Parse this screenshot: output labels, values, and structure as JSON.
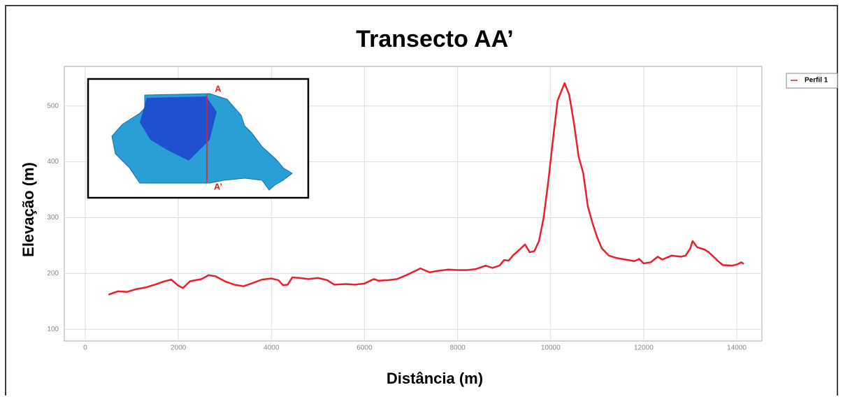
{
  "chart_data": {
    "type": "line",
    "title": "Transecto AA’",
    "x_label": "Distância (m)",
    "y_label": "Elevação (m)",
    "x": [
      500,
      700,
      900,
      1100,
      1300,
      1500,
      1700,
      1850,
      2000,
      2100,
      2250,
      2500,
      2650,
      2800,
      3000,
      3200,
      3400,
      3600,
      3800,
      4000,
      4150,
      4250,
      4350,
      4450,
      4600,
      4800,
      5000,
      5200,
      5350,
      5600,
      5800,
      6000,
      6200,
      6300,
      6500,
      6700,
      6900,
      7100,
      7200,
      7400,
      7600,
      7800,
      8000,
      8200,
      8400,
      8600,
      8750,
      8900,
      9000,
      9100,
      9200,
      9350,
      9450,
      9550,
      9650,
      9750,
      9850,
      9950,
      10050,
      10150,
      10300,
      10400,
      10500,
      10600,
      10700,
      10800,
      10900,
      11000,
      11100,
      11250,
      11400,
      11600,
      11800,
      11900,
      12000,
      12150,
      12300,
      12400,
      12600,
      12800,
      12900,
      13000,
      13050,
      13150,
      13300,
      13400,
      13600,
      13700,
      13900,
      14000,
      14100,
      14150
    ],
    "series": [
      {
        "name": "Perfil 1",
        "color": "#e8202a",
        "values": [
          162,
          168,
          167,
          172,
          175,
          180,
          186,
          189,
          178,
          174,
          186,
          190,
          197,
          195,
          186,
          180,
          177,
          183,
          189,
          191,
          188,
          179,
          180,
          193,
          192,
          190,
          192,
          188,
          180,
          181,
          180,
          182,
          190,
          187,
          188,
          190,
          197,
          205,
          209,
          202,
          205,
          207,
          206,
          206,
          208,
          214,
          210,
          214,
          224,
          223,
          233,
          244,
          252,
          238,
          240,
          258,
          300,
          365,
          440,
          510,
          541,
          520,
          470,
          410,
          380,
          320,
          290,
          265,
          245,
          232,
          228,
          225,
          222,
          226,
          218,
          220,
          230,
          225,
          232,
          230,
          232,
          245,
          258,
          247,
          243,
          238,
          222,
          215,
          214,
          216,
          220,
          217
        ]
      }
    ],
    "xlim": [
      -450,
      14540
    ],
    "ylim": [
      79,
      571
    ],
    "xticks": [
      0,
      2000,
      4000,
      6000,
      8000,
      10000,
      12000,
      14000
    ],
    "yticks": [
      100,
      200,
      300,
      400,
      500
    ],
    "grid": true,
    "legend": "right",
    "inset_labels": [
      "A",
      "A’"
    ]
  }
}
